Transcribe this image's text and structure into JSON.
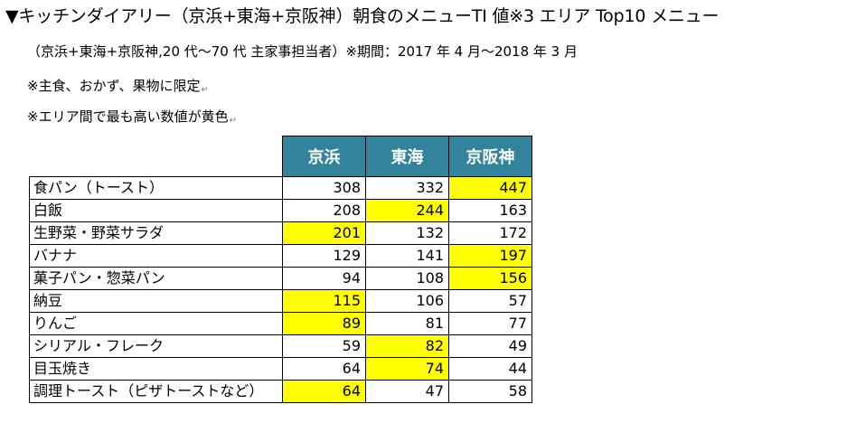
{
  "title": "▼キッチンダイアリー（京浜+東海+京阪神）朝食のメニューTI 値※3 エリア Top10 メニュー",
  "subtitle": "（京浜+東海+京阪神,20 代～70 代 主家事担当者）※期間：2017 年 4 月～2018 年 3 月",
  "notes": [
    "※主食、おかず、果物に限定",
    "※エリア間で最も高い数値が黄色"
  ],
  "paragraph_mark": "↵",
  "highlight_color": "#ffff00",
  "header_color": "#31849b",
  "table": {
    "columns": [
      "京浜",
      "東海",
      "京阪神"
    ],
    "rows": [
      {
        "label": "食パン（トースト）",
        "values": [
          "308",
          "332",
          "447"
        ],
        "highlight": 2
      },
      {
        "label": "白飯",
        "values": [
          "208",
          "244",
          "163"
        ],
        "highlight": 1
      },
      {
        "label": "生野菜・野菜サラダ",
        "values": [
          "201",
          "132",
          "172"
        ],
        "highlight": 0
      },
      {
        "label": "バナナ",
        "values": [
          "129",
          "141",
          "197"
        ],
        "highlight": 2
      },
      {
        "label": "菓子パン・惣菜パン",
        "values": [
          "94",
          "108",
          "156"
        ],
        "highlight": 2
      },
      {
        "label": "納豆",
        "values": [
          "115",
          "106",
          "57"
        ],
        "highlight": 0
      },
      {
        "label": "りんご",
        "values": [
          "89",
          "81",
          "77"
        ],
        "highlight": 0
      },
      {
        "label": "シリアル・フレーク",
        "values": [
          "59",
          "82",
          "49"
        ],
        "highlight": 1
      },
      {
        "label": "目玉焼き",
        "values": [
          "64",
          "74",
          "44"
        ],
        "highlight": 1
      },
      {
        "label": "調理トースト（ピザトーストなど）",
        "values": [
          "64",
          "47",
          "58"
        ],
        "highlight": 0
      }
    ]
  }
}
